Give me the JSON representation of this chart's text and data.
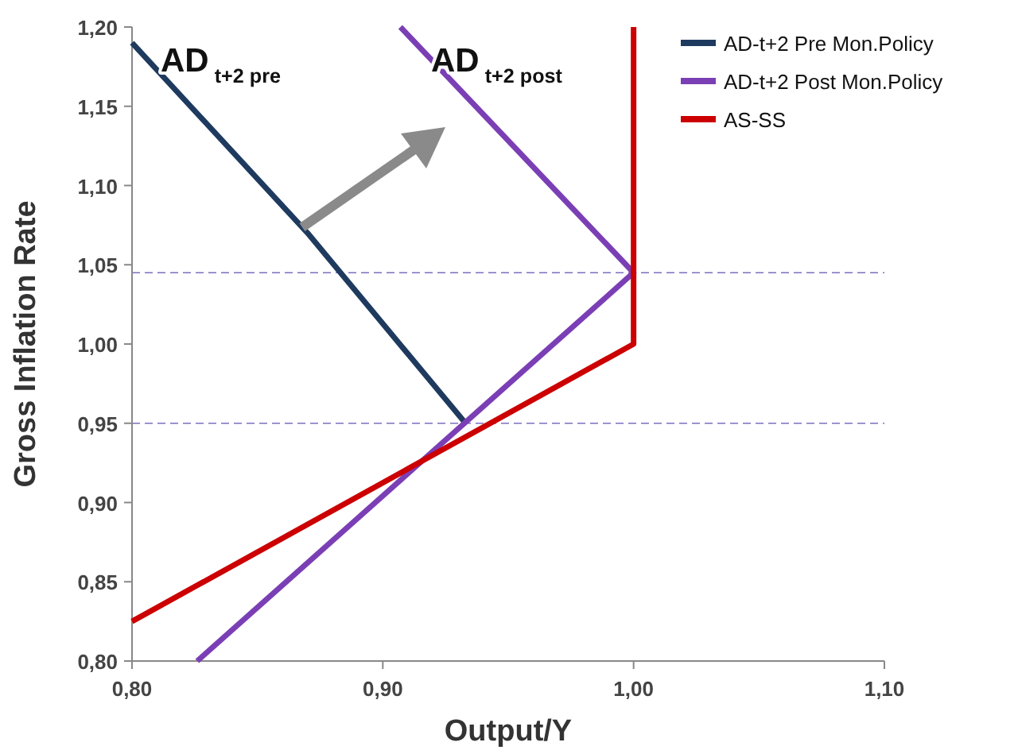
{
  "chart_data": {
    "type": "line",
    "xlabel": "Output/Y",
    "ylabel": "Gross Inflation Rate",
    "xlim": [
      0.8,
      1.1
    ],
    "ylim": [
      0.8,
      1.2
    ],
    "xticks": [
      {
        "value": 0.8,
        "label": "0,80"
      },
      {
        "value": 0.9,
        "label": "0,90"
      },
      {
        "value": 1.0,
        "label": "1,00"
      },
      {
        "value": 1.1,
        "label": "1,10"
      }
    ],
    "yticks": [
      {
        "value": 0.8,
        "label": "0,80"
      },
      {
        "value": 0.85,
        "label": "0,85"
      },
      {
        "value": 0.9,
        "label": "0,90"
      },
      {
        "value": 0.95,
        "label": "0,95"
      },
      {
        "value": 1.0,
        "label": "1,00"
      },
      {
        "value": 1.05,
        "label": "1,05"
      },
      {
        "value": 1.1,
        "label": "1,10"
      },
      {
        "value": 1.15,
        "label": "1,15"
      },
      {
        "value": 1.2,
        "label": "1,20"
      }
    ],
    "series": [
      {
        "name": "AD-t+2 Pre Mon.Policy",
        "color": "#1f3a5f",
        "x": [
          0.8,
          0.87,
          0.933
        ],
        "values": [
          1.19,
          1.07,
          0.95
        ]
      },
      {
        "name": "AD-t+2 Post Mon.Policy",
        "color": "#7b3fb5",
        "x": [
          0.907,
          1.0,
          0.826
        ],
        "values": [
          1.2,
          1.045,
          0.8
        ]
      },
      {
        "name": "AS-SS",
        "color": "#cc0000",
        "x": [
          0.8,
          1.0,
          1.0
        ],
        "values": [
          0.825,
          1.0,
          1.2
        ]
      }
    ],
    "ref_lines": [
      {
        "axis": "y",
        "value": 1.045,
        "color": "#7a6fc0",
        "line_style": "dashed"
      },
      {
        "axis": "y",
        "value": 0.95,
        "color": "#7a6fc0",
        "line_style": "dashed"
      }
    ],
    "annotations": [
      "AD$_{t+2 pre}$",
      "AD$_{t+2 post}$"
    ],
    "legend": "top right",
    "grid": false,
    "marker": "none",
    "line_style": "solid"
  }
}
